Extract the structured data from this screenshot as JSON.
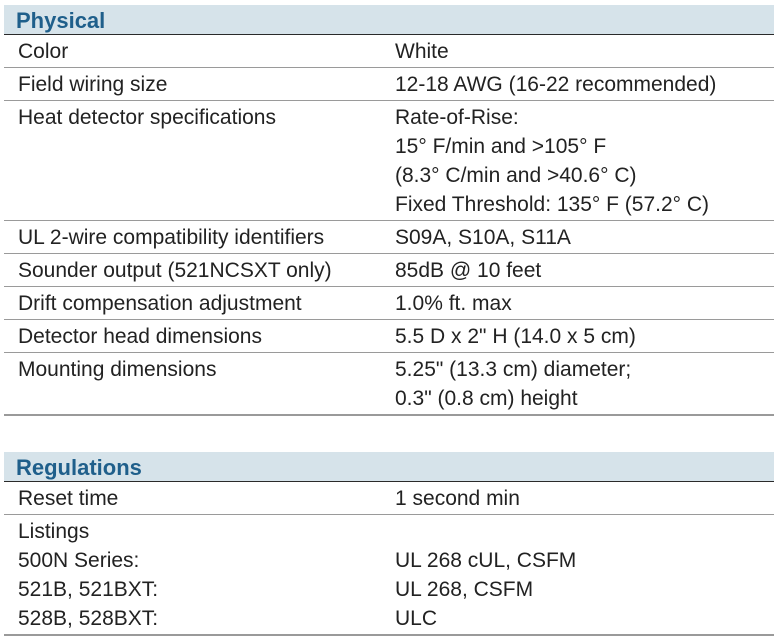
{
  "physical": {
    "title": "Physical",
    "rows": [
      {
        "label": "Color",
        "values": [
          "White"
        ]
      },
      {
        "label": "Field wiring size",
        "values": [
          "12-18 AWG (16-22 recommended)"
        ]
      },
      {
        "label": "Heat detector specifications",
        "values": [
          "Rate-of-Rise:",
          "15° F/min and >105° F",
          "(8.3° C/min and >40.6° C)",
          "Fixed Threshold: 135° F (57.2° C)"
        ]
      },
      {
        "label": "UL 2-wire compatibility identifiers",
        "values": [
          "S09A, S10A, S11A"
        ]
      },
      {
        "label": "Sounder output (521NCSXT only)",
        "values": [
          "85dB @ 10 feet"
        ]
      },
      {
        "label": "Drift compensation adjustment",
        "values": [
          "1.0% ft. max"
        ]
      },
      {
        "label": "Detector head dimensions",
        "values": [
          "5.5 D x 2\" H (14.0 x 5 cm)"
        ]
      },
      {
        "label": "Mounting dimensions",
        "values": [
          "5.25\" (13.3 cm) diameter;",
          "0.3\" (0.8 cm) height"
        ]
      }
    ]
  },
  "regulations": {
    "title": "Regulations",
    "reset": {
      "label": "Reset time",
      "value": "1 second min"
    },
    "listings": {
      "heading": "Listings",
      "items": [
        {
          "model": "500N Series:",
          "standard": "UL 268 cUL, CSFM"
        },
        {
          "model": "521B, 521BXT:",
          "standard": "UL 268, CSFM"
        },
        {
          "model": "528B, 528BXT:",
          "standard": "ULC"
        }
      ]
    }
  }
}
